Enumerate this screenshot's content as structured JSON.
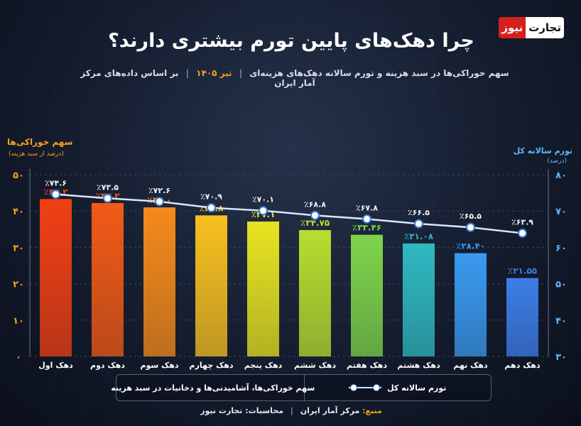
{
  "header": {
    "title": "چرا دهک‌های پایین تورم بیشتری دارند؟",
    "logo_part1": "تجارت",
    "logo_part2": "نیوز",
    "subtitle_part1": "سهم خوراکی‌ها در سبد هزینه و تورم سالانه دهک‌های هزینه‌ای",
    "subtitle_date": "تیر ۱۴۰۵",
    "subtitle_part2": "بر اساس داده‌های مرکز آمار ایران"
  },
  "axes": {
    "left_title": "سهم خوراکی‌ها",
    "left_subtitle": "(درصد از سبد هزینه)",
    "right_title": "تورم سالانه کل",
    "right_subtitle": "(درصد)"
  },
  "legend": {
    "line_label": "تورم سالانه کل",
    "bar_label": "سهم خوراکی‌ها، آشامیدنی‌ها و دخانیات در سبد هزینه"
  },
  "footer": {
    "source_key": "منبع:",
    "source_value": "مرکز آمار ایران",
    "calc_key": "محاسبات:",
    "calc_value": "تجارت نیوز"
  },
  "colors": {
    "line": "#d9e6ff",
    "marker_fill": "#ffffff",
    "marker_stroke": "#3a7bd5",
    "left_axis": "#f4a11d",
    "right_axis": "#5fb6ff"
  },
  "chart_data": {
    "type": "bar+line",
    "categories": [
      "دهک اول",
      "دهک دوم",
      "دهک سوم",
      "دهک چهارم",
      "دهک پنجم",
      "دهک ششم",
      "دهک هفتم",
      "دهک هشتم",
      "دهک نهم",
      "دهک دهم"
    ],
    "series": [
      {
        "name": "سهم خوراکی‌ها، آشامیدنی‌ها و دخانیات در سبد هزینه",
        "type": "bar",
        "axis": "left",
        "values": [
          43.3,
          42.2,
          41.0,
          38.8,
          37.1,
          34.75,
          33.46,
          31.08,
          28.4,
          21.55
        ],
        "labels": [
          "٪۴۳.۳",
          "٪۴۲.۲",
          "٪۴۱.۰",
          "٪۳۸.۸",
          "٪۳۷.۱",
          "٪۳۴.۷۵",
          "٪۳۳.۴۶",
          "٪۳۱.۰۸",
          "٪۲۸.۴۰",
          "٪۲۱.۵۵"
        ],
        "colors": [
          "#f04014",
          "#f25a16",
          "#f58a1a",
          "#f7c01f",
          "#e7e31f",
          "#b7de2e",
          "#7fd44a",
          "#2fb8c0",
          "#3a9af0",
          "#3d7ee8"
        ]
      },
      {
        "name": "تورم سالانه کل",
        "type": "line",
        "axis": "right",
        "values": [
          74.6,
          73.5,
          72.6,
          70.9,
          70.1,
          68.8,
          67.8,
          66.5,
          65.5,
          63.9
        ],
        "labels": [
          "٪۷۴.۶",
          "٪۷۳.۵",
          "٪۷۲.۶",
          "٪۷۰.۹",
          "٪۷۰.۱",
          "٪۶۸.۸",
          "٪۶۷.۸",
          "٪۶۶.۵",
          "٪۶۵.۵",
          "٪۶۳.۹"
        ]
      }
    ],
    "left_axis": {
      "min": 0,
      "max": 50,
      "ticks": [
        "۰",
        "۱۰",
        "۲۰",
        "۳۰",
        "۴۰",
        "۵۰"
      ]
    },
    "right_axis": {
      "min": 30,
      "max": 80,
      "ticks": [
        "۳۰",
        "۴۰",
        "۵۰",
        "۶۰",
        "۷۰",
        "۸۰"
      ]
    },
    "grid": true
  }
}
